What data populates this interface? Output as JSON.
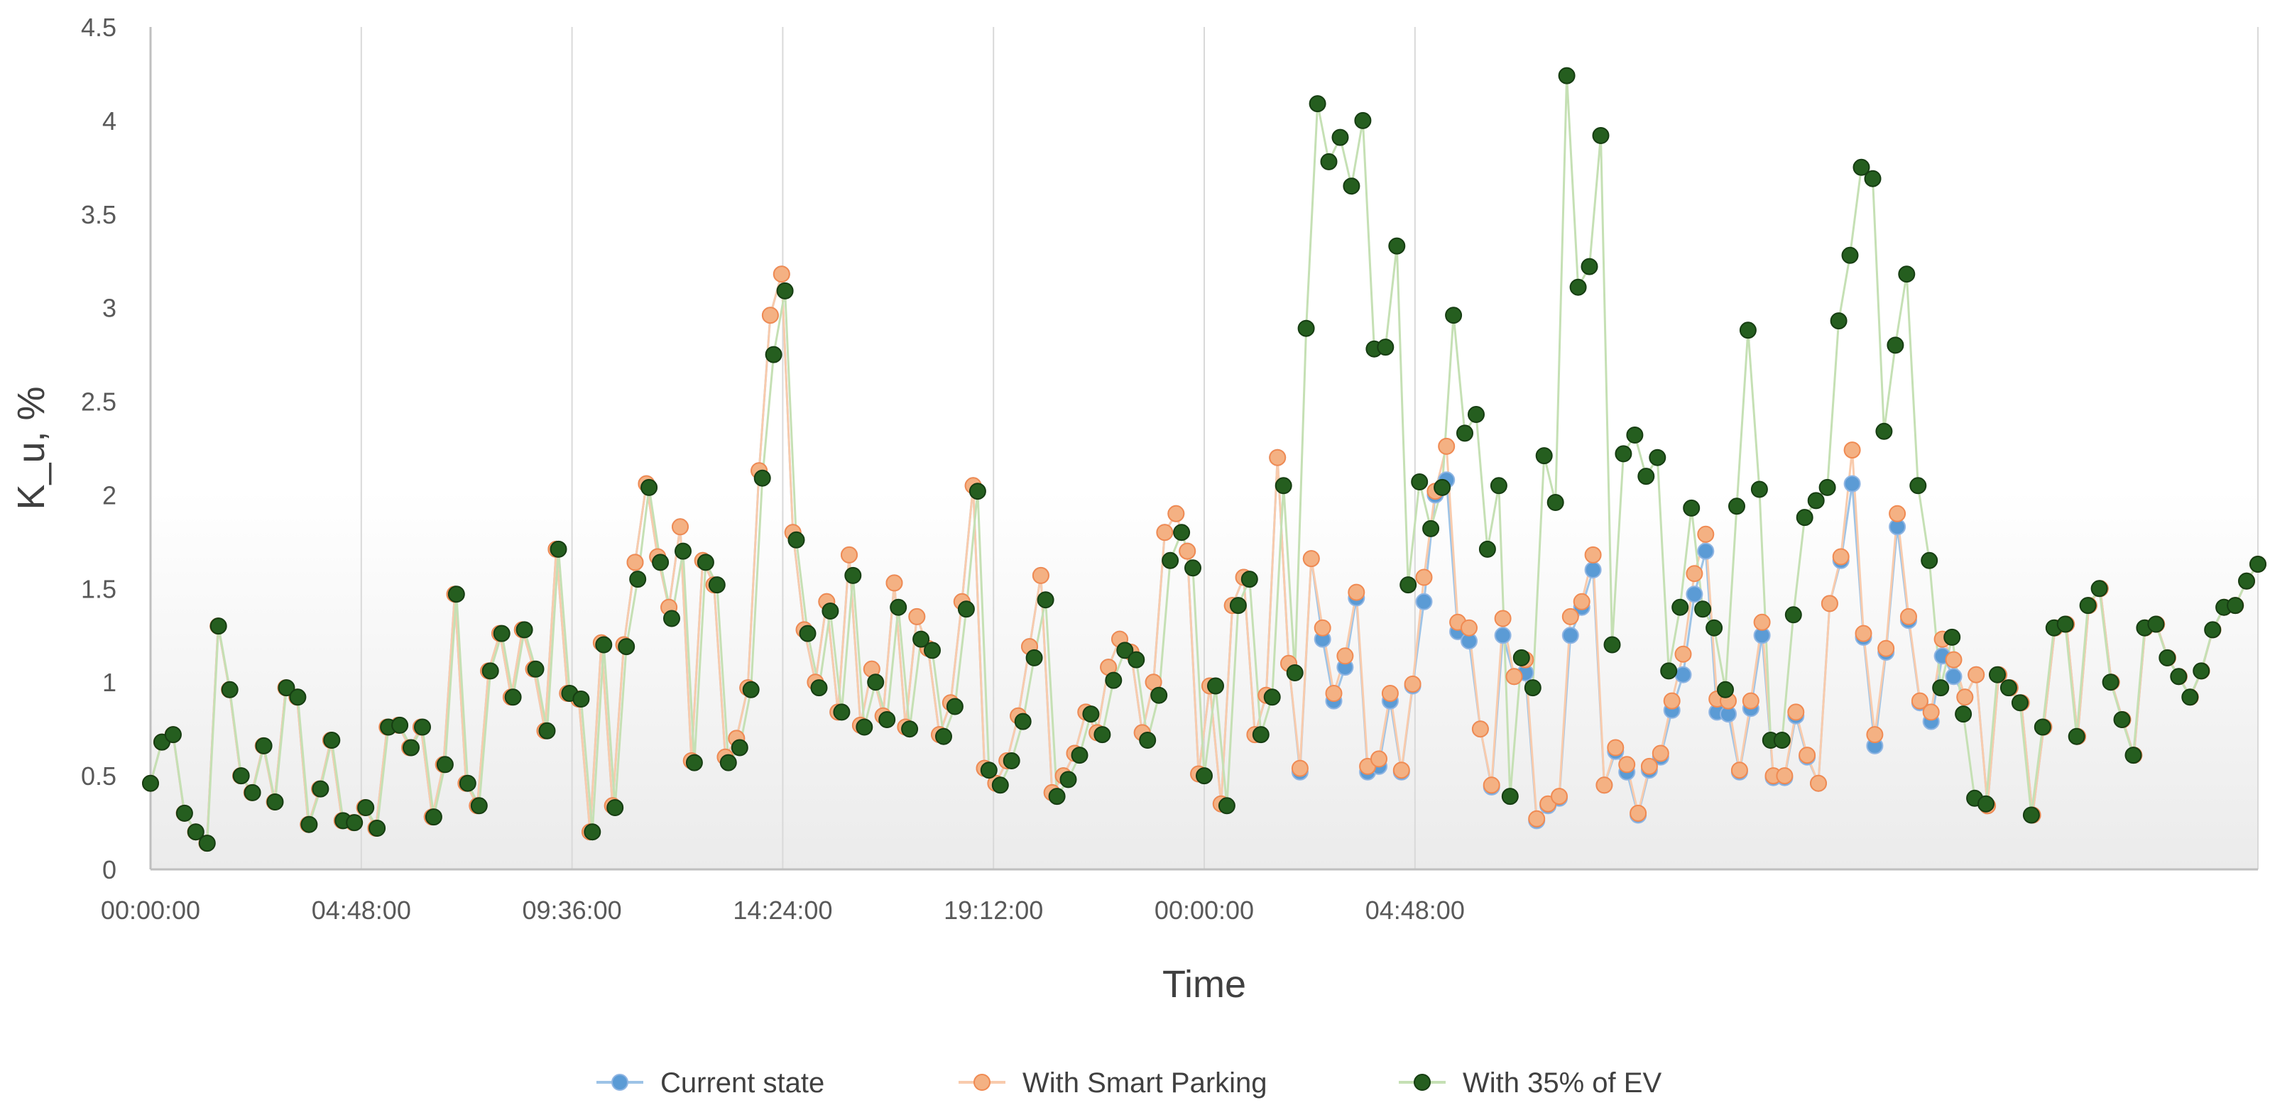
{
  "chart_data": {
    "type": "line",
    "title": "",
    "xlabel": "Time",
    "ylabel": "K_u, %",
    "ylim": [
      0,
      4.5
    ],
    "yticks": [
      "0",
      "0.5",
      "1",
      "1.5",
      "2",
      "2.5",
      "3",
      "3.5",
      "4",
      "4.5"
    ],
    "xlim_hours": [
      0,
      48
    ],
    "xticks": [
      {
        "hour": 0,
        "label": "00:00:00"
      },
      {
        "hour": 4.8,
        "label": "04:48:00"
      },
      {
        "hour": 9.6,
        "label": "09:36:00"
      },
      {
        "hour": 14.4,
        "label": "14:24:00"
      },
      {
        "hour": 19.2,
        "label": "19:12:00"
      },
      {
        "hour": 24,
        "label": "00:00:00"
      },
      {
        "hour": 28.8,
        "label": "04:48:00"
      }
    ],
    "grid": "vertical",
    "legend_position": "bottom",
    "series": [
      {
        "name": "Current state",
        "color": "#5b9bd5",
        "line_color": "#9dc3e6",
        "values": [
          0.46,
          0.68,
          0.72,
          0.3,
          0.2,
          0.14,
          1.3,
          0.96,
          0.5,
          0.41,
          0.66,
          0.36,
          0.97,
          0.92,
          0.24,
          0.43,
          0.69,
          0.26,
          0.25,
          0.33,
          0.22,
          0.76,
          0.77,
          0.65,
          0.76,
          0.28,
          0.56,
          1.47,
          0.46,
          0.34,
          1.06,
          1.26,
          0.92,
          1.28,
          1.07,
          0.74,
          1.71,
          0.94,
          0.91,
          0.2,
          1.21,
          0.34,
          1.2,
          1.64,
          2.06,
          1.67,
          1.4,
          1.83,
          0.58,
          1.65,
          1.52,
          0.6,
          0.7,
          0.97,
          2.13,
          2.96,
          3.18,
          1.8,
          1.28,
          1.0,
          1.43,
          0.84,
          1.68,
          0.77,
          1.07,
          0.82,
          1.53,
          0.76,
          1.35,
          1.18,
          0.72,
          0.89,
          1.43,
          2.05,
          0.54,
          0.46,
          0.58,
          0.82,
          1.19,
          1.57,
          0.41,
          0.5,
          0.62,
          0.84,
          0.73,
          1.08,
          1.23,
          1.16,
          0.73,
          1.0,
          1.8,
          1.9,
          1.7,
          0.51,
          0.98,
          0.35,
          1.41,
          1.56,
          0.72,
          0.93,
          2.2,
          1.1,
          0.52,
          1.66,
          1.23,
          0.9,
          1.08,
          1.45,
          0.52,
          0.55,
          0.9,
          0.52,
          0.98,
          1.43,
          2.0,
          2.08,
          1.27,
          1.22,
          0.75,
          0.44,
          1.25,
          1.03,
          1.05,
          0.26,
          0.34,
          0.38,
          1.25,
          1.4,
          1.6,
          0.45,
          0.63,
          0.52,
          0.29,
          0.53,
          0.6,
          0.85,
          1.04,
          1.47,
          1.7,
          0.84,
          0.83,
          0.52,
          0.86,
          1.25,
          0.49,
          0.49,
          0.82,
          0.6,
          0.46,
          1.42,
          1.65,
          2.06,
          1.24,
          0.66,
          1.16,
          1.83,
          1.33,
          0.89,
          0.79,
          1.14,
          1.03,
          0.92,
          1.04,
          0.34,
          1.04,
          0.97,
          0.89,
          0.29,
          0.76,
          1.29,
          1.31,
          0.71,
          1.41,
          1.5,
          1.0,
          0.8,
          0.61,
          1.29,
          1.31,
          1.13,
          1.03,
          0.92,
          1.06,
          1.28,
          1.4,
          1.41,
          1.54,
          1.63
        ]
      },
      {
        "name": "With Smart Parking",
        "color": "#f4b183",
        "line_color": "#f8cbad",
        "values": [
          0.46,
          0.68,
          0.72,
          0.3,
          0.2,
          0.14,
          1.3,
          0.96,
          0.5,
          0.41,
          0.66,
          0.36,
          0.97,
          0.92,
          0.24,
          0.43,
          0.69,
          0.26,
          0.25,
          0.33,
          0.22,
          0.76,
          0.77,
          0.65,
          0.76,
          0.28,
          0.56,
          1.47,
          0.46,
          0.34,
          1.06,
          1.26,
          0.92,
          1.28,
          1.07,
          0.74,
          1.71,
          0.94,
          0.91,
          0.2,
          1.21,
          0.34,
          1.2,
          1.64,
          2.06,
          1.67,
          1.4,
          1.83,
          0.58,
          1.65,
          1.52,
          0.6,
          0.7,
          0.97,
          2.13,
          2.96,
          3.18,
          1.8,
          1.28,
          1.0,
          1.43,
          0.84,
          1.68,
          0.77,
          1.07,
          0.82,
          1.53,
          0.76,
          1.35,
          1.18,
          0.72,
          0.89,
          1.43,
          2.05,
          0.54,
          0.46,
          0.58,
          0.82,
          1.19,
          1.57,
          0.41,
          0.5,
          0.62,
          0.84,
          0.73,
          1.08,
          1.23,
          1.16,
          0.73,
          1.0,
          1.8,
          1.9,
          1.7,
          0.51,
          0.98,
          0.35,
          1.41,
          1.56,
          0.72,
          0.93,
          2.2,
          1.1,
          0.54,
          1.66,
          1.29,
          0.94,
          1.14,
          1.48,
          0.55,
          0.59,
          0.94,
          0.53,
          0.99,
          1.56,
          2.02,
          2.26,
          1.32,
          1.29,
          0.75,
          0.45,
          1.34,
          1.03,
          1.12,
          0.27,
          0.35,
          0.39,
          1.35,
          1.43,
          1.68,
          0.45,
          0.65,
          0.56,
          0.3,
          0.55,
          0.62,
          0.9,
          1.15,
          1.58,
          1.79,
          0.91,
          0.9,
          0.53,
          0.9,
          1.32,
          0.5,
          0.5,
          0.84,
          0.61,
          0.46,
          1.42,
          1.67,
          2.24,
          1.26,
          0.72,
          1.18,
          1.9,
          1.35,
          0.9,
          0.84,
          1.23,
          1.12,
          0.92,
          1.04,
          0.34,
          1.04,
          0.97,
          0.89,
          0.29,
          0.76,
          1.29,
          1.31,
          0.71,
          1.41,
          1.5,
          1.0,
          0.8,
          0.61,
          1.29,
          1.31,
          1.13,
          1.03,
          0.92,
          1.06,
          1.28,
          1.4,
          1.41,
          1.54,
          1.63
        ]
      },
      {
        "name": "With 35% of EV",
        "color": "#255e1f",
        "line_color": "#c5e0b4",
        "values": [
          0.46,
          0.68,
          0.72,
          0.3,
          0.2,
          0.14,
          1.3,
          0.96,
          0.5,
          0.41,
          0.66,
          0.36,
          0.97,
          0.92,
          0.24,
          0.43,
          0.69,
          0.26,
          0.25,
          0.33,
          0.22,
          0.76,
          0.77,
          0.65,
          0.76,
          0.28,
          0.56,
          1.47,
          0.46,
          0.34,
          1.06,
          1.26,
          0.92,
          1.28,
          1.07,
          0.74,
          1.71,
          0.94,
          0.91,
          0.2,
          1.2,
          0.33,
          1.19,
          1.55,
          2.04,
          1.64,
          1.34,
          1.7,
          0.57,
          1.64,
          1.52,
          0.57,
          0.65,
          0.96,
          2.09,
          2.75,
          3.09,
          1.76,
          1.26,
          0.97,
          1.38,
          0.84,
          1.57,
          0.76,
          1.0,
          0.8,
          1.4,
          0.75,
          1.23,
          1.17,
          0.71,
          0.87,
          1.39,
          2.02,
          0.53,
          0.45,
          0.58,
          0.79,
          1.13,
          1.44,
          0.39,
          0.48,
          0.61,
          0.83,
          0.72,
          1.01,
          1.17,
          1.12,
          0.69,
          0.93,
          1.65,
          1.8,
          1.61,
          0.5,
          0.98,
          0.34,
          1.41,
          1.55,
          0.72,
          0.92,
          2.05,
          1.05,
          2.89,
          4.09,
          3.78,
          3.91,
          3.65,
          4.0,
          2.78,
          2.79,
          3.33,
          1.52,
          2.07,
          1.82,
          2.04,
          2.96,
          2.33,
          2.43,
          1.71,
          2.05,
          0.39,
          1.13,
          0.97,
          2.21,
          1.96,
          4.24,
          3.11,
          3.22,
          3.92,
          1.2,
          2.22,
          2.32,
          2.1,
          2.2,
          1.06,
          1.4,
          1.93,
          1.39,
          1.29,
          0.96,
          1.94,
          2.88,
          2.03,
          0.69,
          0.69,
          1.36,
          1.88,
          1.97,
          2.04,
          2.93,
          3.28,
          3.75,
          3.69,
          2.34,
          2.8,
          3.18,
          2.05,
          1.65,
          0.97,
          1.24,
          0.83,
          0.38,
          0.35,
          1.04,
          0.97,
          0.89,
          0.29,
          0.76,
          1.29,
          1.31,
          0.71,
          1.41,
          1.5,
          1.0,
          0.8,
          0.61,
          1.29,
          1.31,
          1.13,
          1.03,
          0.92,
          1.06,
          1.28,
          1.4,
          1.41,
          1.54,
          1.63
        ]
      }
    ]
  }
}
